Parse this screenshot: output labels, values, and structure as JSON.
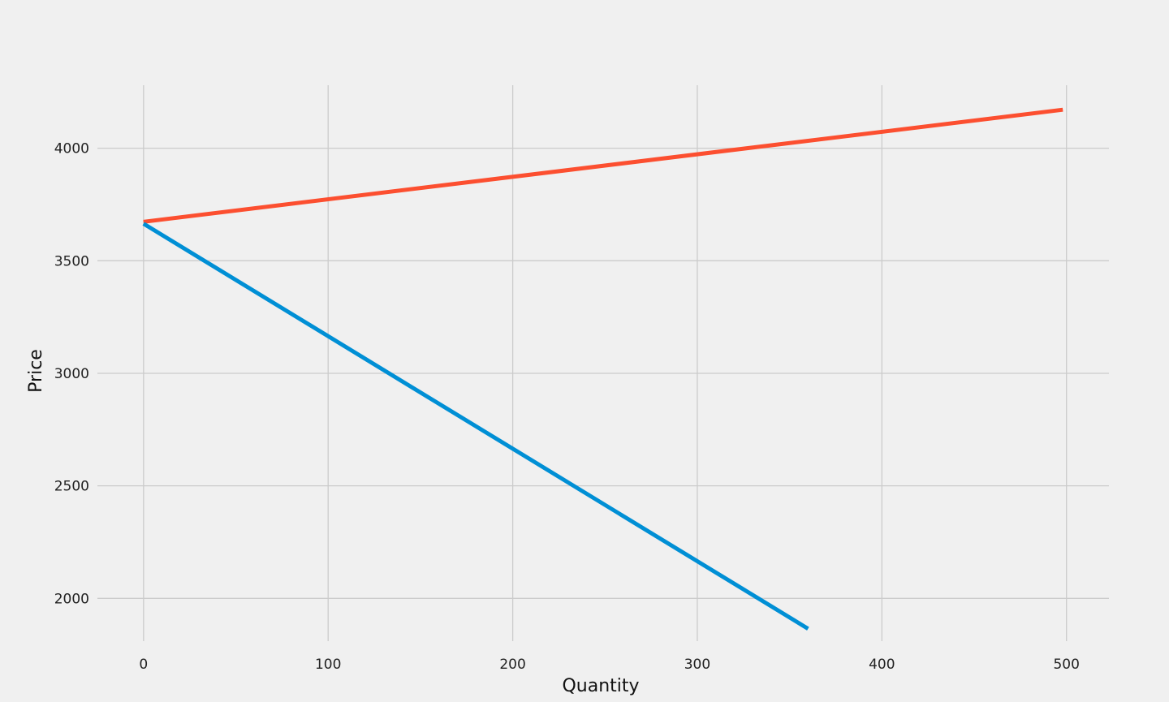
{
  "chart_data": {
    "type": "line",
    "xlabel": "Quantity",
    "ylabel": "Price",
    "xlim": [
      -25,
      523
    ],
    "ylim": [
      1810,
      4280
    ],
    "xticks": [
      0,
      100,
      200,
      300,
      400,
      500
    ],
    "yticks": [
      2000,
      2500,
      3000,
      3500,
      4000
    ],
    "grid": true,
    "series": [
      {
        "color": "#e24a33",
        "x": [
          0,
          498
        ],
        "y": [
          3673,
          4171
        ]
      },
      {
        "color": "#008fd5",
        "x": [
          0,
          360
        ],
        "y": [
          3665,
          1865
        ]
      }
    ]
  },
  "colors": {
    "background": "#f0f0f0",
    "grid": "#cbcbcb",
    "supply_line": "#fc4f30",
    "demand_line": "#008fd5"
  }
}
